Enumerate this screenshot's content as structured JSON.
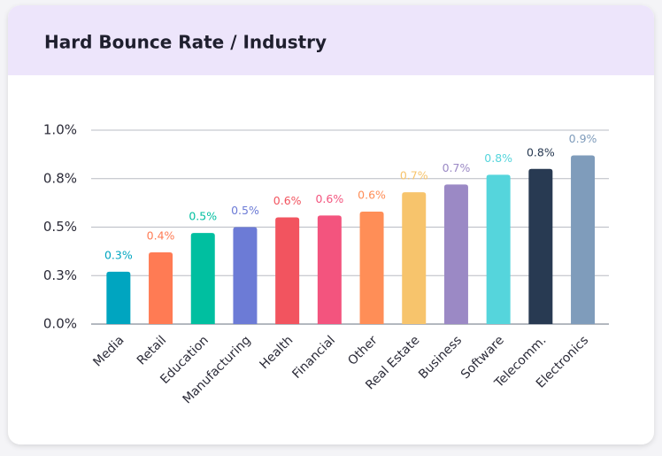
{
  "chart_data": {
    "type": "bar",
    "title": "Hard Bounce Rate / Industry",
    "categories": [
      "Media",
      "Retail",
      "Education",
      "Manufacturing",
      "Health",
      "Financial",
      "Other",
      "Real Estate",
      "Business",
      "Software",
      "Telecomm.",
      "Electronics"
    ],
    "values": [
      0.27,
      0.37,
      0.47,
      0.5,
      0.55,
      0.56,
      0.58,
      0.68,
      0.72,
      0.77,
      0.8,
      0.87
    ],
    "value_labels": [
      "0.3%",
      "0.4%",
      "0.5%",
      "0.5%",
      "0.6%",
      "0.6%",
      "0.6%",
      "0.7%",
      "0.7%",
      "0.8%",
      "0.8%",
      "0.9%"
    ],
    "colors": [
      "#00a5c0",
      "#ff7b54",
      "#00bfa0",
      "#6c7bd6",
      "#f2545f",
      "#f3547e",
      "#ff8e57",
      "#f7c46c",
      "#9b89c5",
      "#55d5dc",
      "#283a52",
      "#7f9cbb"
    ],
    "ylim": [
      0,
      1
    ],
    "yticks": [
      {
        "value": 0,
        "label": "0.0%"
      },
      {
        "value": 0.25,
        "label": "0.3%"
      },
      {
        "value": 0.5,
        "label": "0.5%"
      },
      {
        "value": 0.75,
        "label": "0.8%"
      },
      {
        "value": 1,
        "label": "1.0%"
      }
    ],
    "grid": true
  }
}
